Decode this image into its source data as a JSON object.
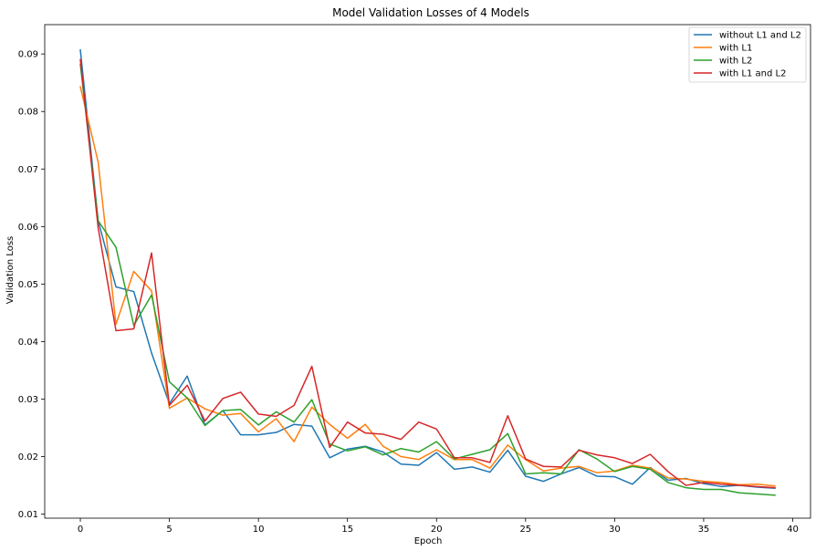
{
  "chart_data": {
    "type": "line",
    "title": "Model Validation Losses of 4 Models",
    "xlabel": "Epoch",
    "ylabel": "Validation Loss",
    "xlim": [
      -2,
      41
    ],
    "ylim": [
      0.0093,
      0.0951
    ],
    "xticks": [
      0,
      5,
      10,
      15,
      20,
      25,
      30,
      35,
      40
    ],
    "yticks": [
      0.01,
      0.02,
      0.03,
      0.04,
      0.05,
      0.06,
      0.07,
      0.08,
      0.09
    ],
    "ytick_labels": [
      "0.01",
      "0.02",
      "0.03",
      "0.04",
      "0.05",
      "0.06",
      "0.07",
      "0.08",
      "0.09"
    ],
    "grid": false,
    "legend_position": "top-right",
    "x": [
      0,
      1,
      2,
      3,
      4,
      5,
      6,
      7,
      8,
      9,
      10,
      11,
      12,
      13,
      14,
      15,
      16,
      17,
      18,
      19,
      20,
      21,
      22,
      23,
      24,
      25,
      26,
      27,
      28,
      29,
      30,
      31,
      32,
      33,
      34,
      35,
      36,
      37,
      38,
      39
    ],
    "series": [
      {
        "name": "without L1 and L2",
        "color": "#1f77b4",
        "values": [
          0.0907,
          0.061,
          0.0495,
          0.0487,
          0.038,
          0.0292,
          0.034,
          0.0255,
          0.028,
          0.0238,
          0.0238,
          0.0242,
          0.0256,
          0.0253,
          0.0198,
          0.0213,
          0.0218,
          0.0208,
          0.0187,
          0.0185,
          0.0207,
          0.0178,
          0.0182,
          0.0173,
          0.0211,
          0.0166,
          0.0157,
          0.017,
          0.0181,
          0.0166,
          0.0165,
          0.0152,
          0.0181,
          0.0159,
          0.0162,
          0.0153,
          0.0148,
          0.015,
          0.0147,
          0.0145
        ]
      },
      {
        "name": "with L1",
        "color": "#ff7f0e",
        "values": [
          0.0843,
          0.0712,
          0.043,
          0.0522,
          0.0488,
          0.0284,
          0.0302,
          0.0283,
          0.0272,
          0.0275,
          0.0243,
          0.0266,
          0.0226,
          0.0286,
          0.0256,
          0.0232,
          0.0256,
          0.0218,
          0.02,
          0.0195,
          0.0212,
          0.0195,
          0.0195,
          0.018,
          0.022,
          0.0195,
          0.0175,
          0.018,
          0.0183,
          0.0172,
          0.0175,
          0.0185,
          0.018,
          0.0163,
          0.0161,
          0.0157,
          0.0155,
          0.0151,
          0.0152,
          0.0149
        ]
      },
      {
        "name": "with L2",
        "color": "#2ca02c",
        "values": [
          0.0882,
          0.061,
          0.0564,
          0.0428,
          0.0481,
          0.033,
          0.0302,
          0.0254,
          0.028,
          0.0282,
          0.0255,
          0.0278,
          0.026,
          0.0299,
          0.0222,
          0.021,
          0.0217,
          0.0203,
          0.0214,
          0.0208,
          0.0226,
          0.0196,
          0.0204,
          0.0212,
          0.024,
          0.017,
          0.0172,
          0.017,
          0.0212,
          0.0196,
          0.0174,
          0.0183,
          0.0178,
          0.0155,
          0.0146,
          0.0143,
          0.0143,
          0.0137,
          0.0135,
          0.0133
        ]
      },
      {
        "name": "with L1 and L2",
        "color": "#d62728",
        "values": [
          0.089,
          0.0598,
          0.0419,
          0.0422,
          0.0554,
          0.0289,
          0.0324,
          0.0262,
          0.0301,
          0.0312,
          0.0274,
          0.027,
          0.0289,
          0.0357,
          0.0216,
          0.026,
          0.0241,
          0.0239,
          0.023,
          0.026,
          0.0248,
          0.0198,
          0.0198,
          0.019,
          0.0271,
          0.0196,
          0.0183,
          0.0182,
          0.0211,
          0.0203,
          0.0198,
          0.0188,
          0.0204,
          0.0174,
          0.015,
          0.0155,
          0.0152,
          0.015,
          0.0148,
          0.0146
        ]
      }
    ]
  }
}
